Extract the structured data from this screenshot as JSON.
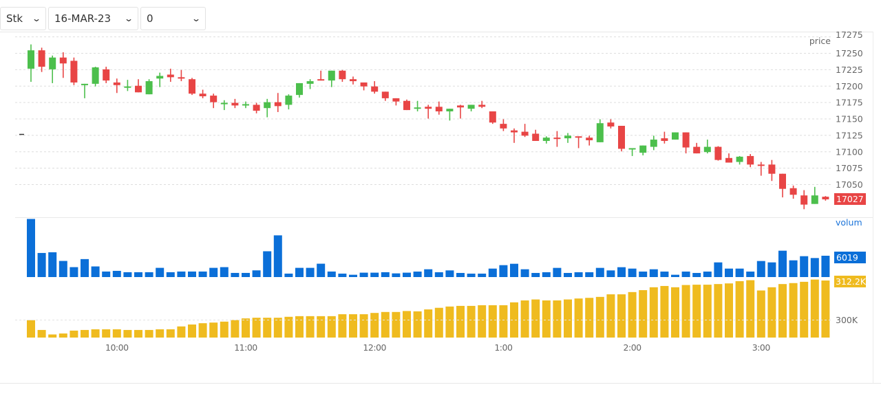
{
  "toolbar": {
    "instrument": "Stk",
    "date": "16-MAR-23",
    "strike": "0"
  },
  "colors": {
    "up": "#4cbf4c",
    "down": "#e84545",
    "volume": "#0b6fd8",
    "cumulative": "#efbb1f",
    "grid": "#dddddd"
  },
  "chart_data": [
    {
      "type": "candlestick",
      "ylabel": "price",
      "y_ticks": [
        17275,
        17250,
        17225,
        17200,
        17175,
        17150,
        17125,
        17100,
        17075,
        17050
      ],
      "ylim": [
        17022,
        17279
      ],
      "grid": true,
      "last_price_label": "17027",
      "x_ticks": [
        "10:00",
        "11:00",
        "12:00",
        "1:00",
        "2:00",
        "3:00"
      ],
      "x": [
        "9:20",
        "9:25",
        "9:30",
        "9:35",
        "9:40",
        "9:45",
        "9:50",
        "9:55",
        "10:00",
        "10:05",
        "10:10",
        "10:15",
        "10:20",
        "10:25",
        "10:30",
        "10:35",
        "10:40",
        "10:45",
        "10:50",
        "10:55",
        "11:00",
        "11:05",
        "11:10",
        "11:15",
        "11:20",
        "11:25",
        "11:30",
        "11:35",
        "11:40",
        "11:45",
        "11:50",
        "11:55",
        "12:00",
        "12:05",
        "12:10",
        "12:15",
        "12:20",
        "12:25",
        "12:30",
        "12:35",
        "12:40",
        "12:45",
        "12:50",
        "12:55",
        "1:00",
        "1:05",
        "1:10",
        "1:15",
        "1:20",
        "1:25",
        "1:30",
        "1:35",
        "1:40",
        "1:45",
        "1:50",
        "1:55",
        "2:00",
        "2:05",
        "2:10",
        "2:15",
        "2:20",
        "2:25",
        "2:30",
        "2:35",
        "2:40",
        "2:45",
        "2:50",
        "2:55",
        "3:00",
        "3:05",
        "3:10",
        "3:15",
        "3:20",
        "3:25",
        "3:30"
      ],
      "ohlc": [
        [
          17226,
          17263,
          17206,
          17254
        ],
        [
          17254,
          17258,
          17221,
          17229
        ],
        [
          17225,
          17246,
          17204,
          17243
        ],
        [
          17243,
          17251,
          17212,
          17234
        ],
        [
          17238,
          17243,
          17201,
          17205
        ],
        [
          17202,
          17203,
          17181,
          17203
        ],
        [
          17203,
          17229,
          17199,
          17228
        ],
        [
          17225,
          17229,
          17204,
          17208
        ],
        [
          17205,
          17211,
          17189,
          17201
        ],
        [
          17198,
          17209,
          17192,
          17199
        ],
        [
          17200,
          17210,
          17190,
          17190
        ],
        [
          17187,
          17210,
          17187,
          17207
        ],
        [
          17211,
          17220,
          17198,
          17215
        ],
        [
          17217,
          17226,
          17206,
          17213
        ],
        [
          17213,
          17224,
          17207,
          17211
        ],
        [
          17210,
          17212,
          17186,
          17188
        ],
        [
          17188,
          17194,
          17181,
          17184
        ],
        [
          17185,
          17188,
          17166,
          17175
        ],
        [
          17173,
          17178,
          17163,
          17174
        ],
        [
          17174,
          17180,
          17166,
          17170
        ],
        [
          17170,
          17176,
          17166,
          17172
        ],
        [
          17171,
          17174,
          17158,
          17162
        ],
        [
          17166,
          17180,
          17152,
          17175
        ],
        [
          17175,
          17189,
          17160,
          17169
        ],
        [
          17171,
          17187,
          17164,
          17185
        ],
        [
          17186,
          17204,
          17182,
          17204
        ],
        [
          17203,
          17210,
          17195,
          17207
        ],
        [
          17210,
          17223,
          17208,
          17208
        ],
        [
          17208,
          17223,
          17198,
          17223
        ],
        [
          17223,
          17224,
          17206,
          17210
        ],
        [
          17210,
          17214,
          17202,
          17207
        ],
        [
          17205,
          17205,
          17193,
          17199
        ],
        [
          17199,
          17207,
          17188,
          17191
        ],
        [
          17191,
          17191,
          17177,
          17181
        ],
        [
          17181,
          17181,
          17170,
          17176
        ],
        [
          17177,
          17179,
          17163,
          17163
        ],
        [
          17165,
          17177,
          17161,
          17167
        ],
        [
          17168,
          17171,
          17150,
          17165
        ],
        [
          17168,
          17176,
          17156,
          17161
        ],
        [
          17161,
          17165,
          17147,
          17165
        ],
        [
          17170,
          17171,
          17150,
          17167
        ],
        [
          17165,
          17171,
          17161,
          17171
        ],
        [
          17171,
          17177,
          17166,
          17168
        ],
        [
          17161,
          17161,
          17142,
          17144
        ],
        [
          17142,
          17149,
          17131,
          17135
        ],
        [
          17132,
          17135,
          17113,
          17129
        ],
        [
          17130,
          17142,
          17122,
          17124
        ],
        [
          17127,
          17133,
          17116,
          17116
        ],
        [
          17116,
          17123,
          17112,
          17121
        ],
        [
          17121,
          17131,
          17107,
          17119
        ],
        [
          17120,
          17128,
          17113,
          17124
        ],
        [
          17123,
          17123,
          17105,
          17122
        ],
        [
          17121,
          17124,
          17109,
          17117
        ],
        [
          17114,
          17149,
          17114,
          17143
        ],
        [
          17144,
          17149,
          17135,
          17138
        ],
        [
          17139,
          17139,
          17100,
          17104
        ],
        [
          17104,
          17105,
          17093,
          17105
        ],
        [
          17098,
          17109,
          17094,
          17109
        ],
        [
          17107,
          17124,
          17102,
          17118
        ],
        [
          17120,
          17130,
          17112,
          17116
        ],
        [
          17118,
          17129,
          17118,
          17129
        ],
        [
          17129,
          17129,
          17097,
          17106
        ],
        [
          17107,
          17113,
          17097,
          17097
        ],
        [
          17099,
          17118,
          17097,
          17107
        ],
        [
          17107,
          17108,
          17086,
          17087
        ],
        [
          17090,
          17097,
          17083,
          17083
        ],
        [
          17084,
          17093,
          17080,
          17092
        ],
        [
          17093,
          17096,
          17076,
          17080
        ],
        [
          17080,
          17084,
          17063,
          17078
        ],
        [
          17080,
          17087,
          17055,
          17066
        ],
        [
          17066,
          17066,
          17030,
          17043
        ],
        [
          17044,
          17048,
          17028,
          17034
        ],
        [
          17033,
          17041,
          17012,
          17019
        ],
        [
          17020,
          17046,
          17020,
          17033
        ],
        [
          17031,
          17032,
          17025,
          17027
        ]
      ]
    },
    {
      "type": "bar",
      "ylabel": "volum",
      "last_value_label": "6019",
      "values": [
        16400,
        6800,
        7000,
        4550,
        2800,
        5070,
        3000,
        1560,
        1750,
        1370,
        1370,
        1370,
        2600,
        1370,
        1560,
        1560,
        1560,
        2600,
        2800,
        1170,
        1170,
        1890,
        7280,
        11770,
        975,
        2600,
        2600,
        3770,
        1560,
        975,
        650,
        1240,
        1240,
        1370,
        1040,
        1240,
        1550,
        2200,
        1360,
        1880,
        1160,
        970,
        970,
        2390,
        3360,
        3750,
        2200,
        1160,
        1360,
        2590,
        1160,
        1360,
        1360,
        2590,
        1880,
        2780,
        2390,
        1550,
        2200,
        1550,
        650,
        1550,
        1160,
        1550,
        4140,
        2390,
        2390,
        1550,
        4530,
        4140,
        7440,
        4720,
        5890,
        5370,
        6019
      ],
      "ylim": [
        0,
        16500
      ]
    },
    {
      "type": "bar",
      "unit": "K",
      "y_tick_label": "300K",
      "last_value_label": "312.2K",
      "values": [
        299.85,
        296.8,
        295.4,
        295.7,
        296.6,
        296.8,
        297.0,
        297.0,
        297.0,
        296.8,
        296.8,
        296.8,
        297.0,
        297.0,
        297.9,
        298.5,
        298.9,
        299.1,
        299.4,
        299.9,
        300.4,
        300.6,
        300.6,
        300.6,
        300.9,
        301.1,
        301.1,
        301.1,
        301.1,
        301.7,
        301.7,
        301.7,
        302.1,
        302.4,
        302.4,
        302.7,
        302.6,
        303.2,
        303.7,
        304.1,
        304.3,
        304.3,
        304.5,
        304.5,
        304.5,
        305.4,
        306.0,
        306.3,
        306.0,
        306.0,
        306.3,
        306.6,
        306.8,
        307.1,
        307.9,
        307.9,
        308.6,
        309.2,
        310.1,
        310.5,
        310.1,
        310.8,
        310.9,
        310.9,
        311.1,
        311.3,
        312.0,
        312.3,
        309.1,
        310.1,
        311.1,
        311.4,
        311.8,
        312.5,
        312.2
      ],
      "ylim": [
        294.4,
        312.5
      ]
    }
  ]
}
